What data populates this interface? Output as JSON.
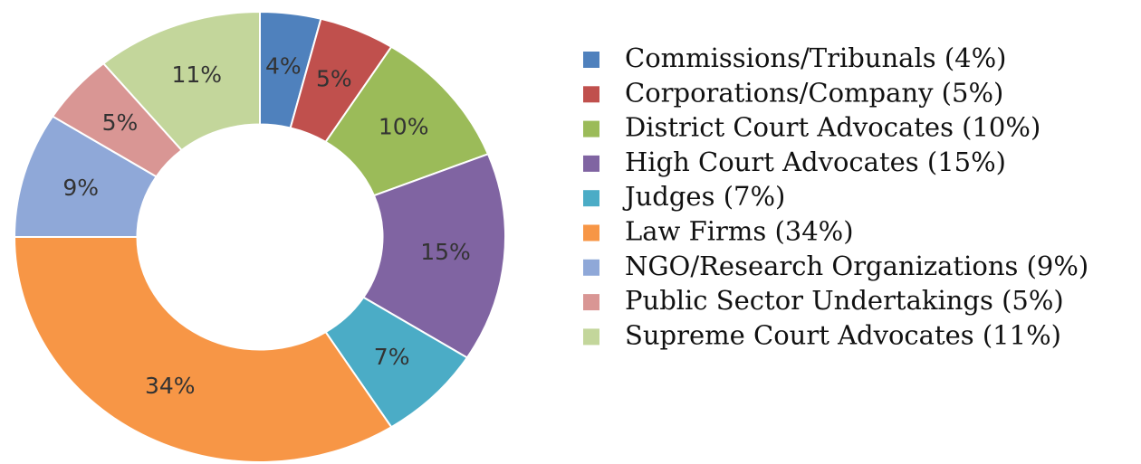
{
  "chart_data": {
    "type": "donut",
    "categories": [
      "Commissions/Tribunals (4%)",
      "Corporations/Company (5%)",
      "District Court Advocates (10%)",
      "High Court Advocates (15%)",
      "Judges (7%)",
      "Law Firms (34%)",
      "NGO/Research Organizations (9%)",
      "Public Sector Undertakings (5%)",
      "Supreme Court Advocates (11%)"
    ],
    "values": [
      4,
      5,
      10,
      15,
      7,
      34,
      9,
      5,
      11
    ],
    "value_labels": [
      "4%",
      "5%",
      "10%",
      "15%",
      "7%",
      "34%",
      "9%",
      "5%",
      "11%"
    ],
    "colors": [
      "#4f81bd",
      "#c0504d",
      "#9bbb59",
      "#8064a2",
      "#4bacc6",
      "#f79646",
      "#8fa8d8",
      "#d99694",
      "#c3d69b"
    ],
    "legend": "right"
  }
}
